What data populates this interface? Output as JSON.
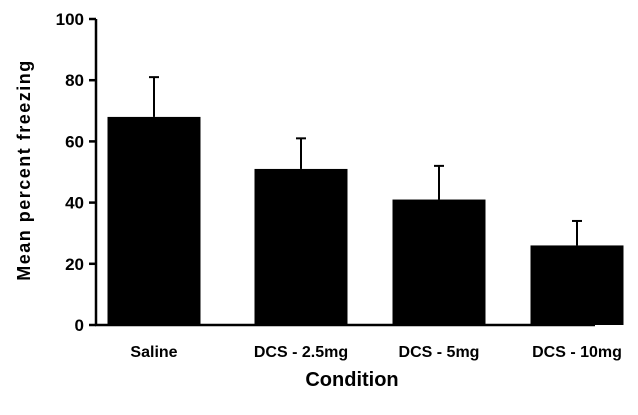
{
  "chart_data": {
    "type": "bar",
    "xlabel": "Condition",
    "ylabel": "Mean percent freezing",
    "categories": [
      "Saline",
      "DCS - 2.5mg",
      "DCS - 5mg",
      "DCS - 10mg"
    ],
    "values": [
      68,
      51,
      41,
      26
    ],
    "error_upper": [
      81,
      61,
      52,
      34
    ],
    "ylim": [
      0,
      100
    ],
    "yticks": [
      0,
      20,
      40,
      60,
      80,
      100
    ],
    "grid": false,
    "legend": "none",
    "bar_color": "#000000",
    "error_bars": "upper only"
  }
}
